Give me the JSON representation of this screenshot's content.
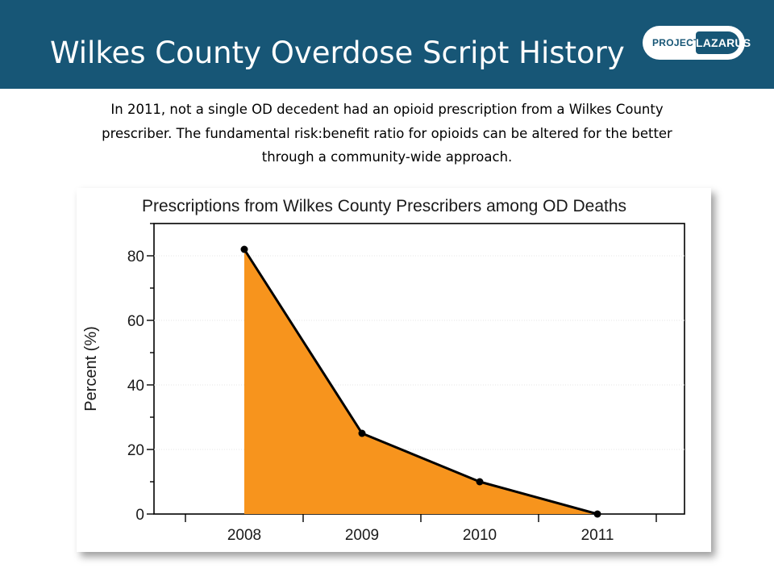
{
  "header": {
    "title": "Wilkes County Overdose Script History",
    "logo": {
      "project": "PROJECT",
      "lazarus": "LAZARUS"
    }
  },
  "subtitle": {
    "lines": [
      "In 2011, not a single OD decedent had an opioid prescription from a Wilkes County",
      "prescriber. The fundamental risk:benefit ratio for opioids can be altered for the better",
      "through a community-wide approach."
    ]
  },
  "colors": {
    "header_bg": "#175676",
    "area_fill": "#F7941D",
    "line": "#000000"
  },
  "chart_data": {
    "type": "area",
    "title": "Prescriptions from Wilkes County Prescribers among OD Deaths",
    "xlabel": "",
    "ylabel": "Percent (%)",
    "categories": [
      "2008",
      "2009",
      "2010",
      "2011"
    ],
    "values": [
      82,
      25,
      10,
      0
    ],
    "ylim": [
      0,
      90
    ],
    "yticks": [
      "0",
      "20",
      "40",
      "60",
      "80"
    ],
    "grid": true,
    "legend": "none"
  }
}
